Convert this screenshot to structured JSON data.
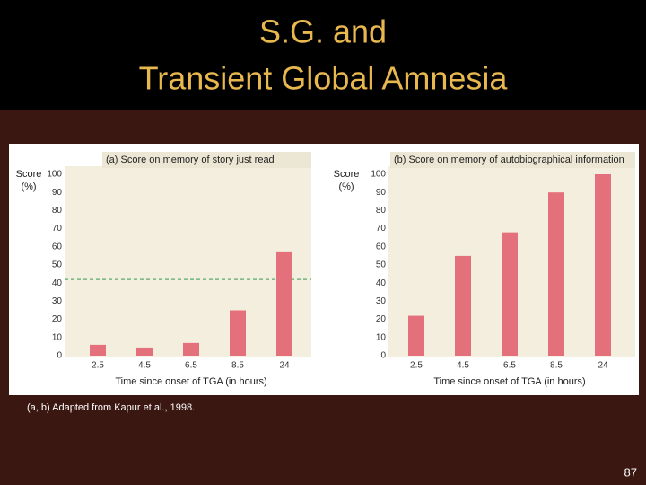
{
  "title": [
    "S.G. and",
    "Transient Global Amnesia"
  ],
  "chart_data": [
    {
      "type": "bar",
      "title": "(a) Score on memory of story just read",
      "ylabel": [
        "Score",
        "(%)"
      ],
      "xlabel": "Time since onset of TGA (in hours)",
      "categories": [
        "2.5",
        "4.5",
        "6.5",
        "8.5",
        "24"
      ],
      "values": [
        6,
        4.5,
        7,
        25,
        57
      ],
      "color": "#e3707a",
      "ylim": [
        0,
        100
      ],
      "yticks": [
        0,
        10,
        20,
        30,
        40,
        50,
        60,
        70,
        80,
        90,
        100
      ],
      "reference_line": 42,
      "reference_color": "#5aa86a"
    },
    {
      "type": "bar",
      "title": "(b) Score on memory of autobiographical information",
      "ylabel": [
        "Score",
        "(%)"
      ],
      "xlabel": "Time since onset of TGA (in hours)",
      "categories": [
        "2.5",
        "4.5",
        "6.5",
        "8.5",
        "24"
      ],
      "values": [
        22,
        55,
        68,
        90,
        100
      ],
      "color": "#e3707a",
      "ylim": [
        0,
        100
      ],
      "yticks": [
        0,
        10,
        20,
        30,
        40,
        50,
        60,
        70,
        80,
        90,
        100
      ]
    }
  ],
  "caption": "(a, b) Adapted from Kapur et al., 1998.",
  "page_number": "87"
}
